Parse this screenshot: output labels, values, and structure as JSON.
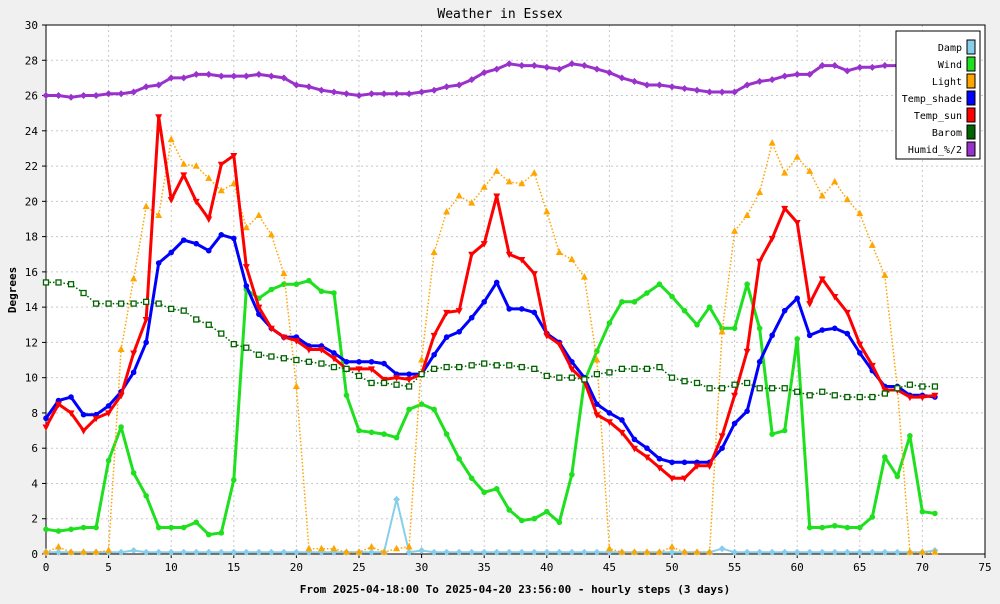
{
  "chart_data": {
    "type": "line",
    "title": "Weather in Essex",
    "xlabel": "From 2025-04-18:00 To 2025-04-20 23:56:00 - hourly steps (3 days)",
    "ylabel": "Degrees",
    "xlim": [
      0,
      75
    ],
    "ylim": [
      0,
      30
    ],
    "x_ticks": [
      0,
      5,
      10,
      15,
      20,
      25,
      30,
      35,
      40,
      45,
      50,
      55,
      60,
      65,
      70,
      75
    ],
    "y_ticks": [
      0,
      2,
      4,
      6,
      8,
      10,
      12,
      14,
      16,
      18,
      20,
      22,
      24,
      26,
      28,
      30
    ],
    "grid": true,
    "legend_position": "top-right",
    "series": [
      {
        "name": "Damp",
        "color": "#87ceeb",
        "line": "solid",
        "marker": "diamond",
        "width": 2,
        "values": [
          0.1,
          0.1,
          0.1,
          0.1,
          0.1,
          0.1,
          0.1,
          0.2,
          0.1,
          0.1,
          0.1,
          0.1,
          0.1,
          0.1,
          0.1,
          0.1,
          0.1,
          0.1,
          0.1,
          0.1,
          0.1,
          0.1,
          0.1,
          0.1,
          0.1,
          0.1,
          0.1,
          0.1,
          3.1,
          0.1,
          0.2,
          0.1,
          0.1,
          0.1,
          0.1,
          0.1,
          0.1,
          0.1,
          0.1,
          0.1,
          0.1,
          0.1,
          0.1,
          0.1,
          0.1,
          0.1,
          0.1,
          0.1,
          0.1,
          0.1,
          0.1,
          0.1,
          0.1,
          0.1,
          0.3,
          0.1,
          0.1,
          0.1,
          0.1,
          0.1,
          0.1,
          0.1,
          0.1,
          0.1,
          0.1,
          0.1,
          0.1,
          0.1,
          0.1,
          0.1,
          0.1,
          0.2
        ]
      },
      {
        "name": "Wind",
        "color": "#1fe01f",
        "line": "solid",
        "marker": "circle",
        "width": 3,
        "values": [
          1.4,
          1.3,
          1.4,
          1.5,
          1.5,
          5.3,
          7.2,
          4.6,
          3.3,
          1.5,
          1.5,
          1.5,
          1.8,
          1.1,
          1.2,
          4.2,
          15.0,
          14.5,
          15.0,
          15.3,
          15.3,
          15.5,
          14.9,
          14.8,
          9.0,
          7.0,
          6.9,
          6.8,
          6.6,
          8.2,
          8.5,
          8.2,
          6.8,
          5.4,
          4.3,
          3.5,
          3.7,
          2.5,
          1.9,
          2.0,
          2.4,
          1.8,
          4.5,
          9.8,
          11.5,
          13.1,
          14.3,
          14.3,
          14.8,
          15.3,
          14.6,
          13.8,
          13.0,
          14.0,
          12.8,
          12.8,
          15.3,
          12.8,
          6.8,
          7.0,
          12.2,
          1.5,
          1.5,
          1.6,
          1.5,
          1.5,
          2.1,
          5.5,
          4.4,
          6.7,
          2.4,
          2.3
        ]
      },
      {
        "name": "Light",
        "color": "#ffa500",
        "line": "dotted",
        "marker": "triangle-up",
        "width": 1.5,
        "values": [
          0.1,
          0.4,
          0.1,
          0.1,
          0.1,
          0.2,
          11.6,
          15.6,
          19.7,
          19.2,
          23.5,
          22.1,
          22.0,
          21.3,
          20.6,
          21.0,
          18.5,
          19.2,
          18.1,
          15.9,
          9.5,
          0.3,
          0.3,
          0.3,
          0.1,
          0.1,
          0.4,
          0.1,
          0.3,
          0.4,
          11.0,
          17.1,
          19.4,
          20.3,
          19.9,
          20.8,
          21.7,
          21.1,
          21.0,
          21.6,
          19.4,
          17.1,
          16.7,
          15.7,
          11.0,
          0.3,
          0.1,
          0.1,
          0.1,
          0.1,
          0.4,
          0.1,
          0.1,
          0.1,
          12.6,
          18.3,
          19.2,
          20.5,
          23.3,
          21.6,
          22.5,
          21.7,
          20.3,
          21.1,
          20.1,
          19.3,
          17.5,
          15.8,
          9.4,
          0.1,
          0.1,
          0.1
        ]
      },
      {
        "name": "Temp_shade",
        "color": "#0000ff",
        "line": "solid",
        "marker": "circle",
        "width": 3,
        "values": [
          7.7,
          8.7,
          8.9,
          7.9,
          7.9,
          8.4,
          9.2,
          10.3,
          12.0,
          16.5,
          17.1,
          17.8,
          17.6,
          17.2,
          18.1,
          17.9,
          15.2,
          13.6,
          12.8,
          12.3,
          12.3,
          11.8,
          11.8,
          11.4,
          10.9,
          10.9,
          10.9,
          10.8,
          10.2,
          10.2,
          10.2,
          11.3,
          12.3,
          12.6,
          13.4,
          14.3,
          15.4,
          13.9,
          13.9,
          13.7,
          12.5,
          12.0,
          10.9,
          10.0,
          8.5,
          8.0,
          7.6,
          6.5,
          6.0,
          5.4,
          5.2,
          5.2,
          5.2,
          5.2,
          6.0,
          7.4,
          8.1,
          10.9,
          12.4,
          13.8,
          14.5,
          12.4,
          12.7,
          12.8,
          12.5,
          11.4,
          10.4,
          9.5,
          9.5,
          9.0,
          9.0,
          8.9
        ]
      },
      {
        "name": "Temp_sun",
        "color": "#ff0000",
        "line": "solid",
        "marker": "triangle-down",
        "width": 3,
        "values": [
          7.2,
          8.5,
          8.0,
          7.0,
          7.7,
          8.0,
          9.0,
          11.4,
          13.3,
          24.8,
          20.1,
          21.5,
          20.0,
          19.0,
          22.1,
          22.6,
          16.3,
          14.0,
          12.8,
          12.3,
          12.1,
          11.6,
          11.6,
          11.1,
          10.5,
          10.5,
          10.5,
          9.9,
          10.0,
          9.9,
          10.2,
          12.4,
          13.7,
          13.8,
          17.0,
          17.6,
          20.3,
          17.0,
          16.7,
          15.9,
          12.4,
          11.9,
          10.5,
          9.8,
          7.9,
          7.5,
          6.9,
          6.0,
          5.5,
          4.9,
          4.3,
          4.3,
          5.0,
          5.0,
          6.7,
          9.0,
          11.5,
          16.6,
          17.9,
          19.6,
          18.8,
          14.2,
          15.6,
          14.6,
          13.7,
          11.9,
          10.7,
          9.3,
          9.3,
          8.9,
          8.9,
          9.0
        ]
      },
      {
        "name": "Barom",
        "color": "#006400",
        "line": "dotted",
        "marker": "square-open",
        "width": 1.5,
        "values": [
          15.4,
          15.4,
          15.3,
          14.8,
          14.2,
          14.2,
          14.2,
          14.2,
          14.3,
          14.2,
          13.9,
          13.8,
          13.3,
          13.0,
          12.5,
          11.9,
          11.7,
          11.3,
          11.2,
          11.1,
          11.0,
          10.9,
          10.8,
          10.6,
          10.5,
          10.1,
          9.7,
          9.7,
          9.6,
          9.5,
          10.2,
          10.5,
          10.6,
          10.6,
          10.7,
          10.8,
          10.7,
          10.7,
          10.6,
          10.5,
          10.1,
          10.0,
          10.0,
          9.9,
          10.2,
          10.3,
          10.5,
          10.5,
          10.5,
          10.6,
          10.0,
          9.8,
          9.7,
          9.4,
          9.4,
          9.6,
          9.7,
          9.4,
          9.4,
          9.4,
          9.2,
          9.0,
          9.2,
          9.0,
          8.9,
          8.9,
          8.9,
          9.1,
          9.4,
          9.6,
          9.5,
          9.5
        ]
      },
      {
        "name": "Humid_%/2",
        "color": "#9932cc",
        "line": "solid",
        "marker": "diamond",
        "width": 3,
        "values": [
          26.0,
          26.0,
          25.9,
          26.0,
          26.0,
          26.1,
          26.1,
          26.2,
          26.5,
          26.6,
          27.0,
          27.0,
          27.2,
          27.2,
          27.1,
          27.1,
          27.1,
          27.2,
          27.1,
          27.0,
          26.6,
          26.5,
          26.3,
          26.2,
          26.1,
          26.0,
          26.1,
          26.1,
          26.1,
          26.1,
          26.2,
          26.3,
          26.5,
          26.6,
          26.9,
          27.3,
          27.5,
          27.8,
          27.7,
          27.7,
          27.6,
          27.5,
          27.8,
          27.7,
          27.5,
          27.3,
          27.0,
          26.8,
          26.6,
          26.6,
          26.5,
          26.4,
          26.3,
          26.2,
          26.2,
          26.2,
          26.6,
          26.8,
          26.9,
          27.1,
          27.2,
          27.2,
          27.7,
          27.7,
          27.4,
          27.6,
          27.6,
          27.7,
          27.7,
          27.7,
          27.7,
          27.8
        ]
      }
    ]
  }
}
